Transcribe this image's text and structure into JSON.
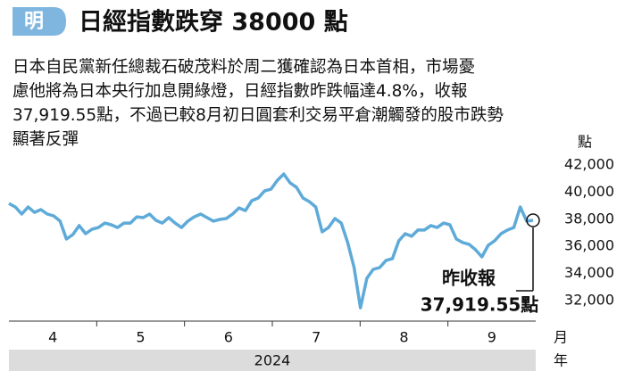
{
  "header": {
    "badge": "明",
    "title": "日經指數跌穿 38000 點"
  },
  "paragraph": [
    "日本自民黨新任總裁石破茂料於周二獲確認為日本首相，市場憂",
    "慮他將為日本央行加息開綠燈，日經指數昨跌幅達4.8%，收報",
    "37,919.55點，不過已較8月初日圓套利交易平倉潮觸發的股市跌勢",
    "顯著反彈"
  ],
  "chart_data": {
    "type": "line",
    "y_unit": "點",
    "color": "#5eaad8",
    "months": [
      "4",
      "5",
      "6",
      "7",
      "8",
      "9"
    ],
    "month_unit": "月",
    "year": "2024",
    "year_unit": "年",
    "values": [
      39170,
      38900,
      38380,
      38900,
      38510,
      38710,
      38380,
      38250,
      37860,
      36540,
      36870,
      37530,
      36930,
      37260,
      37390,
      37720,
      37590,
      37390,
      37720,
      37720,
      38180,
      38120,
      38380,
      37920,
      37720,
      38120,
      37720,
      37390,
      37860,
      38180,
      38380,
      38120,
      37860,
      37990,
      38050,
      38380,
      38840,
      38640,
      39370,
      39570,
      40090,
      40220,
      40880,
      41340,
      40680,
      40360,
      39570,
      39300,
      38910,
      37070,
      37390,
      38050,
      37720,
      36280,
      34430,
      31458,
      33640,
      34300,
      34430,
      34960,
      35090,
      36410,
      36930,
      36740,
      37200,
      37200,
      37530,
      37390,
      37720,
      37590,
      36540,
      36280,
      36150,
      35750,
      35220,
      36080,
      36410,
      36930,
      37200,
      37390,
      38910,
      37860,
      37919.55
    ],
    "annotation": [
      "昨收報",
      "37,919.55點"
    ],
    "ylim": [
      31200,
      42600
    ],
    "yticks": [
      {
        "value": 32000,
        "label": "32,000"
      },
      {
        "value": 34000,
        "label": "34,000"
      },
      {
        "value": 36000,
        "label": "36,000"
      },
      {
        "value": 38000,
        "label": "38,000"
      },
      {
        "value": 40000,
        "label": "40,000"
      },
      {
        "value": 42000,
        "label": "42,000"
      }
    ]
  }
}
